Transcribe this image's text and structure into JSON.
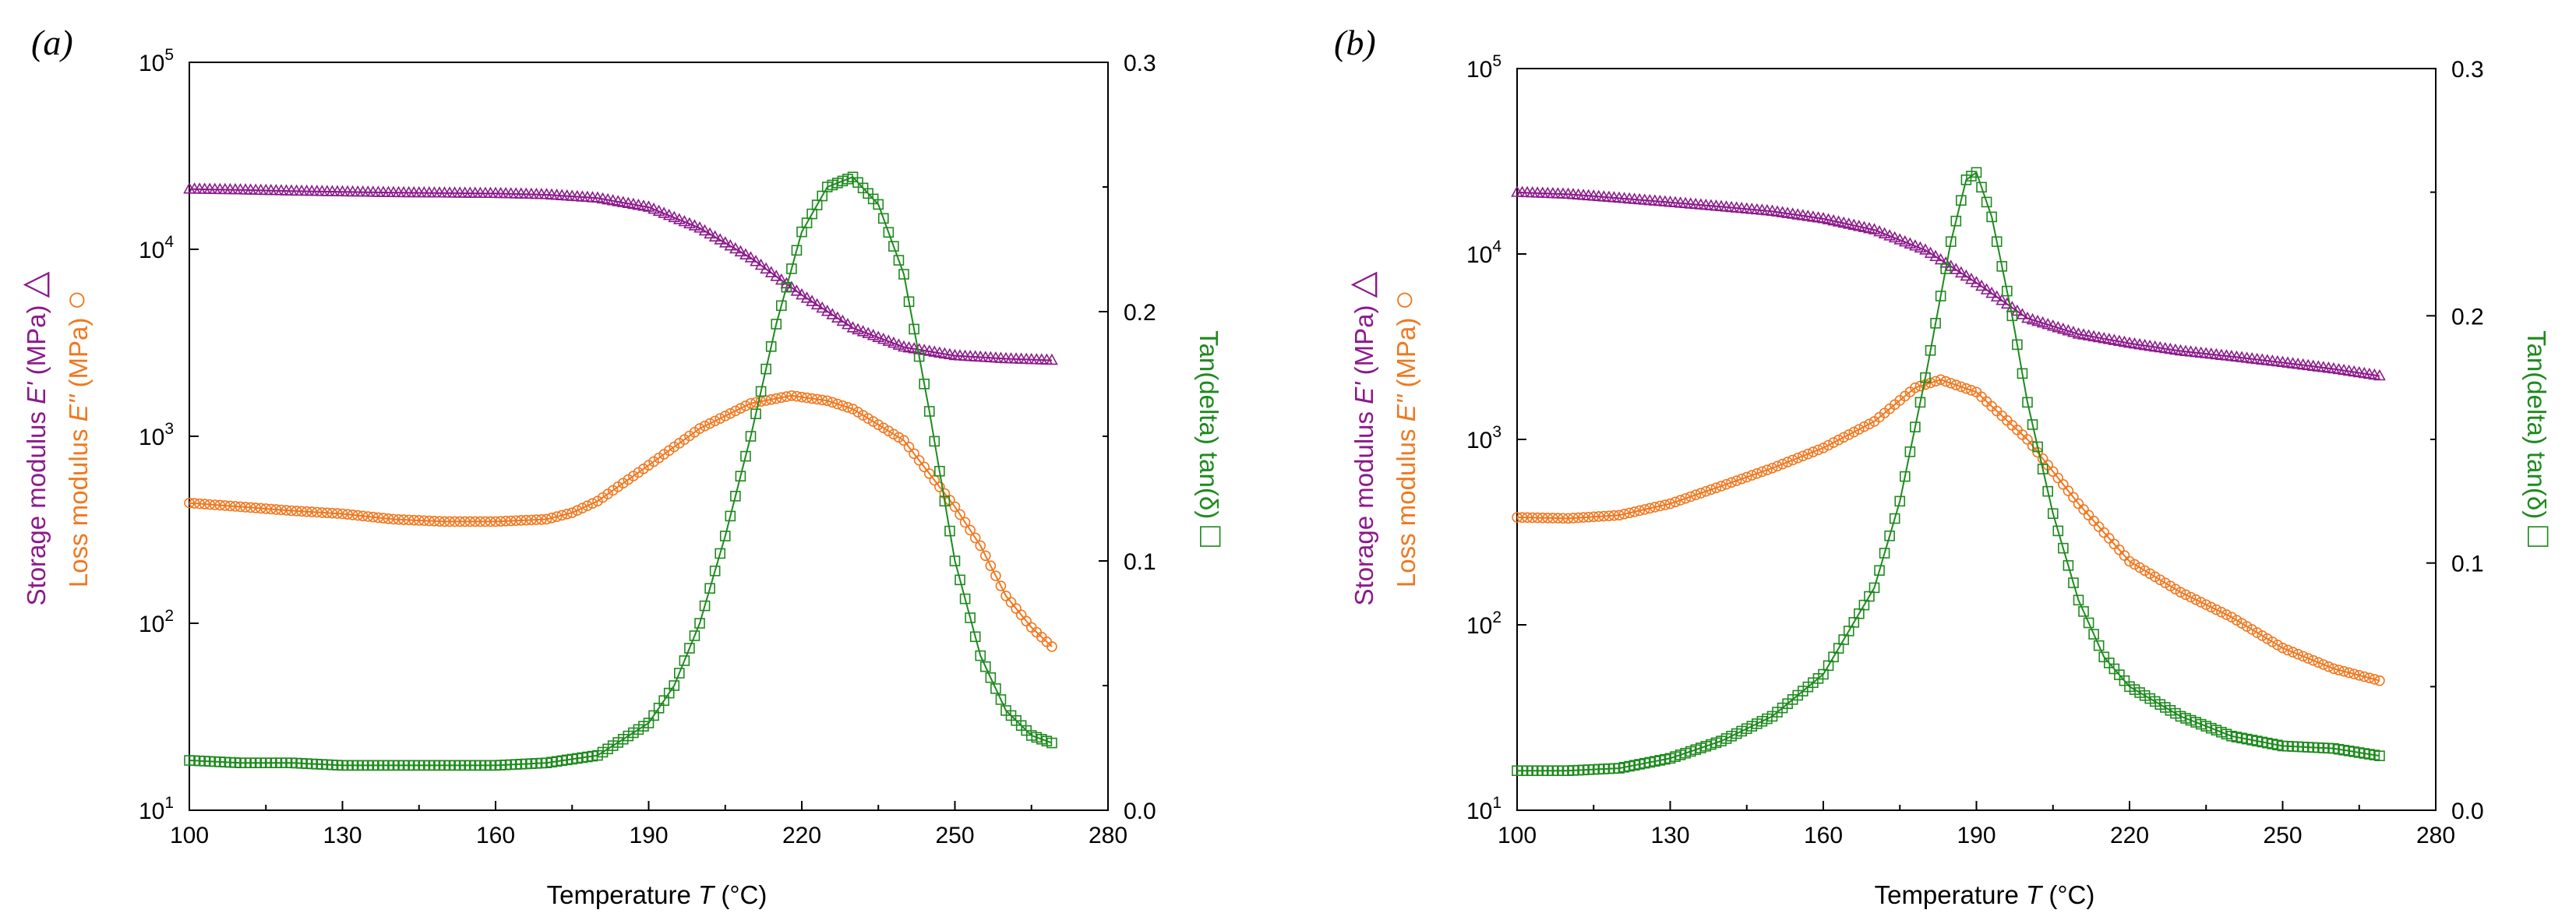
{
  "chart_data": [
    {
      "type": "line",
      "panel_label": "(a)",
      "xlabel_prefix": "Temperature ",
      "xlabel_var": "T",
      "xlabel_unit": " (°C)",
      "xlim": [
        100,
        280
      ],
      "x_ticks": [
        "100",
        "130",
        "160",
        "190",
        "220",
        "250",
        "280"
      ],
      "y_left": {
        "scale": "log",
        "ylim": [
          10,
          100000
        ],
        "ticks": [
          {
            "base": "10",
            "exp": "1"
          },
          {
            "base": "10",
            "exp": "2"
          },
          {
            "base": "10",
            "exp": "3"
          },
          {
            "base": "10",
            "exp": "4"
          },
          {
            "base": "10",
            "exp": "5"
          }
        ],
        "label_storage_prefix": "Storage modulus ",
        "label_storage_var": "E'",
        "label_storage_unit": " (MPa) ",
        "label_storage_symbol": "△",
        "label_loss_prefix": "Loss modulus ",
        "label_loss_var": "E''",
        "label_loss_unit": " (MPa) ",
        "label_loss_symbol": "○"
      },
      "y_right": {
        "scale": "linear",
        "ylim": [
          0.0,
          0.3
        ],
        "ticks": [
          "0.0",
          "0.1",
          "0.2",
          "0.3"
        ],
        "label_text": "Tan(delta) tan(δ) ",
        "label_symbol": "□"
      },
      "series": [
        {
          "name": "Storage modulus E'",
          "axis": "left",
          "marker": "triangle",
          "color": "#8B1A8B",
          "points": [
            [
              100,
              21000
            ],
            [
              110,
              20800
            ],
            [
              120,
              20500
            ],
            [
              130,
              20300
            ],
            [
              140,
              20100
            ],
            [
              150,
              20000
            ],
            [
              160,
              19900
            ],
            [
              170,
              19600
            ],
            [
              180,
              18800
            ],
            [
              190,
              16800
            ],
            [
              200,
              13000
            ],
            [
              210,
              9000
            ],
            [
              220,
              5700
            ],
            [
              230,
              3800
            ],
            [
              240,
              3000
            ],
            [
              250,
              2700
            ],
            [
              260,
              2600
            ],
            [
              269,
              2550
            ]
          ]
        },
        {
          "name": "Loss modulus E''",
          "axis": "left",
          "marker": "circle",
          "color": "#F07820",
          "points": [
            [
              100,
              440
            ],
            [
              110,
              420
            ],
            [
              120,
              400
            ],
            [
              130,
              385
            ],
            [
              140,
              360
            ],
            [
              150,
              350
            ],
            [
              160,
              350
            ],
            [
              170,
              360
            ],
            [
              175,
              390
            ],
            [
              180,
              450
            ],
            [
              190,
              700
            ],
            [
              200,
              1100
            ],
            [
              210,
              1500
            ],
            [
              218,
              1650
            ],
            [
              225,
              1550
            ],
            [
              230,
              1400
            ],
            [
              240,
              950
            ],
            [
              250,
              420
            ],
            [
              255,
              260
            ],
            [
              260,
              140
            ],
            [
              265,
              95
            ],
            [
              269,
              75
            ]
          ]
        },
        {
          "name": "tan(delta)",
          "axis": "right",
          "marker": "square",
          "color": "#1E8A1E",
          "points": [
            [
              100,
              0.02
            ],
            [
              110,
              0.019
            ],
            [
              120,
              0.019
            ],
            [
              130,
              0.018
            ],
            [
              140,
              0.018
            ],
            [
              150,
              0.018
            ],
            [
              160,
              0.018
            ],
            [
              170,
              0.019
            ],
            [
              180,
              0.022
            ],
            [
              190,
              0.035
            ],
            [
              195,
              0.05
            ],
            [
              200,
              0.075
            ],
            [
              205,
              0.11
            ],
            [
              210,
              0.15
            ],
            [
              215,
              0.195
            ],
            [
              220,
              0.232
            ],
            [
              225,
              0.25
            ],
            [
              230,
              0.254
            ],
            [
              235,
              0.243
            ],
            [
              240,
              0.215
            ],
            [
              245,
              0.16
            ],
            [
              250,
              0.1
            ],
            [
              255,
              0.062
            ],
            [
              260,
              0.04
            ],
            [
              265,
              0.03
            ],
            [
              269,
              0.027
            ]
          ]
        }
      ]
    },
    {
      "type": "line",
      "panel_label": "(b)",
      "xlabel_prefix": "Temperature ",
      "xlabel_var": "T",
      "xlabel_unit": " (°C)",
      "xlim": [
        100,
        280
      ],
      "x_ticks": [
        "100",
        "130",
        "160",
        "190",
        "220",
        "250",
        "280"
      ],
      "y_left": {
        "scale": "log",
        "ylim": [
          10,
          100000
        ],
        "ticks": [
          {
            "base": "10",
            "exp": "1"
          },
          {
            "base": "10",
            "exp": "2"
          },
          {
            "base": "10",
            "exp": "3"
          },
          {
            "base": "10",
            "exp": "4"
          },
          {
            "base": "10",
            "exp": "5"
          }
        ],
        "label_storage_prefix": "Storage modulus ",
        "label_storage_var": "E'",
        "label_storage_unit": " (MPa) ",
        "label_storage_symbol": "△",
        "label_loss_prefix": "Loss modulus ",
        "label_loss_var": "E''",
        "label_loss_unit": " (MPa) ",
        "label_loss_symbol": "○"
      },
      "y_right": {
        "scale": "linear",
        "ylim": [
          0.0,
          0.3
        ],
        "ticks": [
          "0.0",
          "0.1",
          "0.2",
          "0.3"
        ],
        "label_text": "Tan(delta) tan(δ) ",
        "label_symbol": "□"
      },
      "series": [
        {
          "name": "Storage modulus E'",
          "axis": "left",
          "marker": "triangle",
          "color": "#8B1A8B",
          "points": [
            [
              100,
              21500
            ],
            [
              110,
              21000
            ],
            [
              120,
              20000
            ],
            [
              130,
              19000
            ],
            [
              140,
              18000
            ],
            [
              150,
              17000
            ],
            [
              160,
              15500
            ],
            [
              170,
              13500
            ],
            [
              180,
              10500
            ],
            [
              190,
              7000
            ],
            [
              200,
              4500
            ],
            [
              210,
              3700
            ],
            [
              220,
              3300
            ],
            [
              230,
              3000
            ],
            [
              240,
              2800
            ],
            [
              250,
              2600
            ],
            [
              260,
              2400
            ],
            [
              269,
              2200
            ]
          ]
        },
        {
          "name": "Loss modulus E''",
          "axis": "left",
          "marker": "circle",
          "color": "#F07820",
          "points": [
            [
              100,
              380
            ],
            [
              110,
              375
            ],
            [
              120,
              390
            ],
            [
              130,
              450
            ],
            [
              140,
              560
            ],
            [
              150,
              700
            ],
            [
              160,
              900
            ],
            [
              170,
              1250
            ],
            [
              178,
              1900
            ],
            [
              183,
              2100
            ],
            [
              190,
              1800
            ],
            [
              200,
              1000
            ],
            [
              210,
              450
            ],
            [
              220,
              220
            ],
            [
              230,
              150
            ],
            [
              240,
              110
            ],
            [
              250,
              75
            ],
            [
              260,
              58
            ],
            [
              269,
              50
            ]
          ]
        },
        {
          "name": "tan(delta)",
          "axis": "right",
          "marker": "square",
          "color": "#1E8A1E",
          "points": [
            [
              100,
              0.016
            ],
            [
              110,
              0.016
            ],
            [
              120,
              0.017
            ],
            [
              130,
              0.021
            ],
            [
              140,
              0.028
            ],
            [
              150,
              0.038
            ],
            [
              160,
              0.055
            ],
            [
              170,
              0.09
            ],
            [
              175,
              0.125
            ],
            [
              180,
              0.175
            ],
            [
              185,
              0.23
            ],
            [
              188,
              0.255
            ],
            [
              190,
              0.258
            ],
            [
              193,
              0.24
            ],
            [
              197,
              0.2
            ],
            [
              200,
              0.165
            ],
            [
              205,
              0.12
            ],
            [
              210,
              0.085
            ],
            [
              215,
              0.062
            ],
            [
              220,
              0.05
            ],
            [
              230,
              0.038
            ],
            [
              240,
              0.03
            ],
            [
              250,
              0.026
            ],
            [
              260,
              0.025
            ],
            [
              269,
              0.022
            ]
          ]
        }
      ]
    }
  ]
}
